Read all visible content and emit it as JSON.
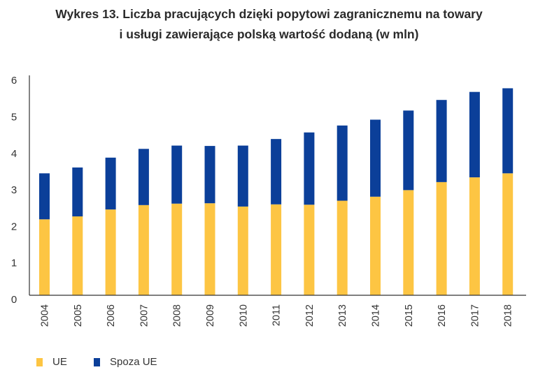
{
  "title": {
    "line1": "Wykres 13.  Liczba pracujących dzięki popytowi zagranicznemu na towary",
    "line2": "i usługi zawierające polską wartość dodaną (w mln)"
  },
  "chart_data": {
    "type": "bar",
    "stacked": true,
    "title": "Wykres 13.  Liczba pracujących dzięki popytowi zagranicznemu na towary i usługi zawierające polską wartość dodaną (w mln)",
    "categories": [
      "2004",
      "2005",
      "2006",
      "2007",
      "2008",
      "2009",
      "2010",
      "2011",
      "2012",
      "2013",
      "2014",
      "2015",
      "2016",
      "2017",
      "2018"
    ],
    "series": [
      {
        "name": "UE",
        "color": "#FDC543",
        "values": [
          2.08,
          2.16,
          2.35,
          2.47,
          2.51,
          2.52,
          2.43,
          2.49,
          2.48,
          2.59,
          2.7,
          2.88,
          3.1,
          3.23,
          3.34
        ]
      },
      {
        "name": "Spoza UE",
        "color": "#0B3F99",
        "values": [
          1.26,
          1.34,
          1.42,
          1.54,
          1.59,
          1.57,
          1.67,
          1.79,
          1.98,
          2.06,
          2.11,
          2.18,
          2.25,
          2.34,
          2.33
        ]
      }
    ],
    "ylim": [
      0,
      6
    ],
    "yticks": [
      "0",
      "1",
      "2",
      "3",
      "4",
      "5",
      "6"
    ],
    "xlabel": "",
    "ylabel": "",
    "grid": false,
    "legend": "bottom-left"
  }
}
